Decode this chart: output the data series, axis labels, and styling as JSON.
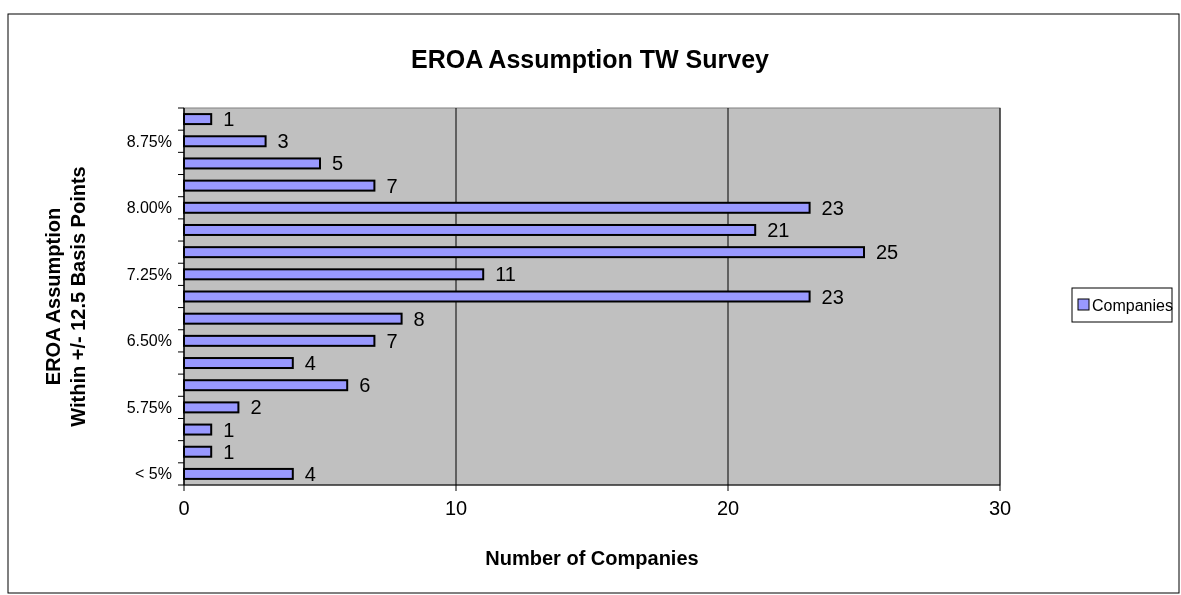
{
  "chart_data": {
    "type": "bar",
    "orientation": "horizontal",
    "title": "EROA Assumption TW Survey",
    "xlabel": "Number of Companies",
    "ylabel": "EROA Assumption\nWithin +/- 12.5 Basis Points",
    "categories": [
      null,
      "8.75%",
      null,
      null,
      "8.00%",
      null,
      null,
      "7.25%",
      null,
      null,
      "6.50%",
      null,
      null,
      "5.75%",
      null,
      null,
      "< 5%"
    ],
    "series": [
      {
        "name": "Companies",
        "color": "#9999ff",
        "values": [
          1,
          3,
          5,
          7,
          23,
          21,
          25,
          11,
          23,
          8,
          7,
          4,
          6,
          2,
          1,
          1,
          4
        ]
      }
    ],
    "xlim": [
      0,
      30
    ],
    "xticks": [
      0,
      10,
      20,
      30
    ],
    "grid": "x",
    "legend": "right",
    "data_labels": true
  }
}
